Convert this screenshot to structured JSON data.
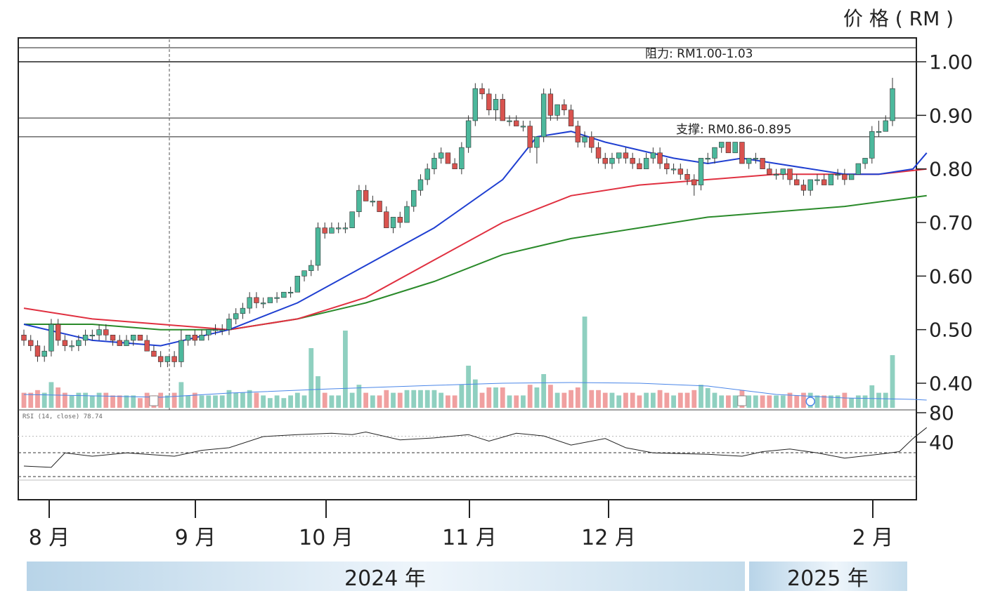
{
  "chart_data": {
    "type": "candlestick",
    "y_unit_label": "价 格 ( RM )",
    "ylim": [
      0.36,
      1.03
    ],
    "y_ticks": [
      {
        "value": 1.0,
        "label": "1.00"
      },
      {
        "value": 0.9,
        "label": "0.90"
      },
      {
        "value": 0.8,
        "label": "0.80"
      },
      {
        "value": 0.7,
        "label": "0.70"
      },
      {
        "value": 0.6,
        "label": "0.60"
      },
      {
        "value": 0.5,
        "label": "0.50"
      },
      {
        "value": 0.4,
        "label": "0.40"
      }
    ],
    "rsi_ticks": [
      {
        "value": 80,
        "label": "80"
      },
      {
        "value": 40,
        "label": "40"
      }
    ],
    "month_labels": [
      "8 月",
      "9 月",
      "10 月",
      "11 月",
      "12 月",
      "2 月"
    ],
    "year_labels": [
      "2024 年",
      "2025 年"
    ],
    "resistance": {
      "label": "阻力: RM1.00-1.03",
      "low": 1.0,
      "high": 1.03
    },
    "support": {
      "label": "支撑: RM0.86-0.895",
      "low": 0.86,
      "high": 0.895
    },
    "rsi_legend": "RSI (14, close) 78.74",
    "rsi_value": 78.74,
    "colors": {
      "up": "#4cb89c",
      "down": "#d9534f",
      "ma_short": "#1f3fd1",
      "ma_mid": "#e03040",
      "ma_long": "#2a8a2a",
      "vol_up": "#8fd0c0",
      "vol_down": "#f0a0a0",
      "vol_ma": "#4a86e8"
    },
    "anchor_dates": [
      "2024-08-01",
      "2024-09-02",
      "2024-10-01",
      "2024-11-01",
      "2024-12-02",
      "2025-02-03"
    ],
    "candles": [
      [
        0.49,
        0.5,
        0.47,
        0.48
      ],
      [
        0.48,
        0.49,
        0.46,
        0.47
      ],
      [
        0.47,
        0.48,
        0.44,
        0.45
      ],
      [
        0.45,
        0.47,
        0.44,
        0.46
      ],
      [
        0.46,
        0.52,
        0.45,
        0.51
      ],
      [
        0.51,
        0.52,
        0.47,
        0.48
      ],
      [
        0.48,
        0.49,
        0.46,
        0.47
      ],
      [
        0.47,
        0.48,
        0.46,
        0.47
      ],
      [
        0.47,
        0.49,
        0.46,
        0.48
      ],
      [
        0.48,
        0.5,
        0.47,
        0.49
      ],
      [
        0.49,
        0.5,
        0.48,
        0.49
      ],
      [
        0.49,
        0.51,
        0.48,
        0.5
      ],
      [
        0.5,
        0.51,
        0.48,
        0.49
      ],
      [
        0.49,
        0.49,
        0.47,
        0.48
      ],
      [
        0.48,
        0.49,
        0.47,
        0.47
      ],
      [
        0.47,
        0.49,
        0.47,
        0.48
      ],
      [
        0.48,
        0.49,
        0.47,
        0.49
      ],
      [
        0.49,
        0.49,
        0.48,
        0.48
      ],
      [
        0.48,
        0.49,
        0.46,
        0.46
      ],
      [
        0.46,
        0.47,
        0.45,
        0.45
      ],
      [
        0.45,
        0.46,
        0.43,
        0.44
      ],
      [
        0.44,
        0.45,
        0.43,
        0.45
      ],
      [
        0.45,
        0.46,
        0.43,
        0.44
      ],
      [
        0.44,
        0.5,
        0.43,
        0.48
      ],
      [
        0.48,
        0.49,
        0.47,
        0.49
      ],
      [
        0.49,
        0.5,
        0.47,
        0.48
      ],
      [
        0.48,
        0.5,
        0.48,
        0.49
      ],
      [
        0.49,
        0.5,
        0.48,
        0.5
      ],
      [
        0.5,
        0.51,
        0.49,
        0.5
      ],
      [
        0.5,
        0.51,
        0.49,
        0.5
      ],
      [
        0.5,
        0.53,
        0.49,
        0.52
      ],
      [
        0.52,
        0.54,
        0.51,
        0.53
      ],
      [
        0.53,
        0.55,
        0.52,
        0.54
      ],
      [
        0.54,
        0.57,
        0.53,
        0.56
      ],
      [
        0.56,
        0.57,
        0.54,
        0.55
      ],
      [
        0.55,
        0.56,
        0.54,
        0.55
      ],
      [
        0.55,
        0.56,
        0.55,
        0.56
      ],
      [
        0.56,
        0.57,
        0.55,
        0.56
      ],
      [
        0.56,
        0.57,
        0.56,
        0.57
      ],
      [
        0.57,
        0.58,
        0.56,
        0.57
      ],
      [
        0.57,
        0.6,
        0.57,
        0.6
      ],
      [
        0.6,
        0.61,
        0.59,
        0.61
      ],
      [
        0.61,
        0.63,
        0.6,
        0.62
      ],
      [
        0.62,
        0.7,
        0.61,
        0.69
      ],
      [
        0.69,
        0.7,
        0.67,
        0.68
      ],
      [
        0.68,
        0.7,
        0.68,
        0.69
      ],
      [
        0.69,
        0.7,
        0.68,
        0.69
      ],
      [
        0.69,
        0.7,
        0.68,
        0.69
      ],
      [
        0.69,
        0.72,
        0.69,
        0.72
      ],
      [
        0.72,
        0.77,
        0.71,
        0.76
      ],
      [
        0.76,
        0.77,
        0.74,
        0.74
      ],
      [
        0.74,
        0.75,
        0.73,
        0.74
      ],
      [
        0.74,
        0.74,
        0.72,
        0.72
      ],
      [
        0.72,
        0.73,
        0.69,
        0.69
      ],
      [
        0.69,
        0.71,
        0.68,
        0.71
      ],
      [
        0.71,
        0.72,
        0.69,
        0.7
      ],
      [
        0.7,
        0.74,
        0.7,
        0.73
      ],
      [
        0.73,
        0.76,
        0.72,
        0.76
      ],
      [
        0.76,
        0.79,
        0.75,
        0.78
      ],
      [
        0.78,
        0.81,
        0.77,
        0.8
      ],
      [
        0.8,
        0.83,
        0.79,
        0.82
      ],
      [
        0.82,
        0.84,
        0.81,
        0.83
      ],
      [
        0.83,
        0.83,
        0.81,
        0.81
      ],
      [
        0.81,
        0.82,
        0.8,
        0.8
      ],
      [
        0.8,
        0.85,
        0.79,
        0.84
      ],
      [
        0.84,
        0.9,
        0.83,
        0.89
      ],
      [
        0.89,
        0.96,
        0.88,
        0.95
      ],
      [
        0.95,
        0.96,
        0.93,
        0.94
      ],
      [
        0.94,
        0.95,
        0.9,
        0.91
      ],
      [
        0.91,
        0.94,
        0.89,
        0.93
      ],
      [
        0.93,
        0.94,
        0.89,
        0.89
      ],
      [
        0.89,
        0.9,
        0.88,
        0.89
      ],
      [
        0.89,
        0.9,
        0.88,
        0.88
      ],
      [
        0.88,
        0.89,
        0.87,
        0.88
      ],
      [
        0.88,
        0.89,
        0.83,
        0.84
      ],
      [
        0.84,
        0.86,
        0.81,
        0.86
      ],
      [
        0.86,
        0.95,
        0.85,
        0.94
      ],
      [
        0.94,
        0.95,
        0.89,
        0.9
      ],
      [
        0.9,
        0.92,
        0.89,
        0.92
      ],
      [
        0.92,
        0.93,
        0.9,
        0.91
      ],
      [
        0.91,
        0.92,
        0.88,
        0.88
      ],
      [
        0.88,
        0.89,
        0.84,
        0.85
      ],
      [
        0.85,
        0.87,
        0.84,
        0.86
      ],
      [
        0.86,
        0.87,
        0.83,
        0.84
      ],
      [
        0.84,
        0.85,
        0.81,
        0.82
      ],
      [
        0.82,
        0.83,
        0.8,
        0.81
      ],
      [
        0.81,
        0.83,
        0.8,
        0.82
      ],
      [
        0.82,
        0.83,
        0.81,
        0.83
      ],
      [
        0.83,
        0.84,
        0.81,
        0.82
      ],
      [
        0.82,
        0.83,
        0.8,
        0.81
      ],
      [
        0.81,
        0.82,
        0.8,
        0.8
      ],
      [
        0.8,
        0.83,
        0.8,
        0.82
      ],
      [
        0.82,
        0.84,
        0.81,
        0.83
      ],
      [
        0.83,
        0.84,
        0.8,
        0.81
      ],
      [
        0.81,
        0.82,
        0.79,
        0.8
      ],
      [
        0.8,
        0.81,
        0.79,
        0.8
      ],
      [
        0.8,
        0.81,
        0.78,
        0.79
      ],
      [
        0.79,
        0.8,
        0.77,
        0.78
      ],
      [
        0.78,
        0.79,
        0.75,
        0.77
      ],
      [
        0.77,
        0.82,
        0.76,
        0.82
      ],
      [
        0.82,
        0.83,
        0.81,
        0.82
      ],
      [
        0.82,
        0.84,
        0.81,
        0.84
      ],
      [
        0.84,
        0.85,
        0.83,
        0.85
      ],
      [
        0.85,
        0.85,
        0.83,
        0.83
      ],
      [
        0.83,
        0.85,
        0.83,
        0.85
      ],
      [
        0.85,
        0.85,
        0.81,
        0.81
      ],
      [
        0.81,
        0.82,
        0.8,
        0.82
      ],
      [
        0.82,
        0.83,
        0.81,
        0.82
      ],
      [
        0.82,
        0.82,
        0.8,
        0.8
      ],
      [
        0.8,
        0.81,
        0.79,
        0.79
      ],
      [
        0.79,
        0.8,
        0.78,
        0.79
      ],
      [
        0.79,
        0.8,
        0.78,
        0.8
      ],
      [
        0.8,
        0.8,
        0.77,
        0.78
      ],
      [
        0.78,
        0.79,
        0.77,
        0.77
      ],
      [
        0.77,
        0.78,
        0.75,
        0.76
      ],
      [
        0.76,
        0.78,
        0.75,
        0.78
      ],
      [
        0.78,
        0.79,
        0.77,
        0.78
      ],
      [
        0.78,
        0.79,
        0.77,
        0.77
      ],
      [
        0.77,
        0.79,
        0.77,
        0.79
      ],
      [
        0.79,
        0.8,
        0.78,
        0.79
      ],
      [
        0.79,
        0.8,
        0.77,
        0.78
      ],
      [
        0.78,
        0.79,
        0.78,
        0.79
      ],
      [
        0.79,
        0.81,
        0.79,
        0.81
      ],
      [
        0.81,
        0.82,
        0.8,
        0.82
      ],
      [
        0.82,
        0.88,
        0.81,
        0.87
      ],
      [
        0.87,
        0.89,
        0.86,
        0.87
      ],
      [
        0.87,
        0.9,
        0.87,
        0.89
      ],
      [
        0.89,
        0.97,
        0.88,
        0.95
      ]
    ],
    "ma_short": [
      [
        0,
        0.51
      ],
      [
        10,
        0.48
      ],
      [
        20,
        0.47
      ],
      [
        30,
        0.5
      ],
      [
        40,
        0.55
      ],
      [
        50,
        0.62
      ],
      [
        60,
        0.69
      ],
      [
        70,
        0.78
      ],
      [
        75,
        0.86
      ],
      [
        80,
        0.87
      ],
      [
        85,
        0.85
      ],
      [
        95,
        0.82
      ],
      [
        100,
        0.81
      ],
      [
        105,
        0.82
      ],
      [
        110,
        0.81
      ],
      [
        120,
        0.79
      ],
      [
        125,
        0.79
      ],
      [
        130,
        0.8
      ],
      [
        132,
        0.83
      ]
    ],
    "ma_mid": [
      [
        0,
        0.54
      ],
      [
        10,
        0.52
      ],
      [
        20,
        0.51
      ],
      [
        30,
        0.5
      ],
      [
        40,
        0.52
      ],
      [
        50,
        0.56
      ],
      [
        60,
        0.63
      ],
      [
        70,
        0.7
      ],
      [
        80,
        0.75
      ],
      [
        90,
        0.77
      ],
      [
        100,
        0.78
      ],
      [
        110,
        0.79
      ],
      [
        120,
        0.79
      ],
      [
        125,
        0.79
      ],
      [
        132,
        0.8
      ]
    ],
    "ma_long": [
      [
        0,
        0.51
      ],
      [
        10,
        0.51
      ],
      [
        20,
        0.5
      ],
      [
        30,
        0.5
      ],
      [
        40,
        0.52
      ],
      [
        50,
        0.55
      ],
      [
        60,
        0.59
      ],
      [
        70,
        0.64
      ],
      [
        80,
        0.67
      ],
      [
        90,
        0.69
      ],
      [
        100,
        0.71
      ],
      [
        110,
        0.72
      ],
      [
        120,
        0.73
      ],
      [
        132,
        0.75
      ]
    ],
    "rsi": [
      [
        0,
        20
      ],
      [
        4,
        18
      ],
      [
        6,
        40
      ],
      [
        10,
        35
      ],
      [
        15,
        40
      ],
      [
        22,
        35
      ],
      [
        26,
        44
      ],
      [
        30,
        48
      ],
      [
        35,
        65
      ],
      [
        40,
        68
      ],
      [
        45,
        70
      ],
      [
        48,
        68
      ],
      [
        50,
        72
      ],
      [
        55,
        60
      ],
      [
        60,
        63
      ],
      [
        65,
        68
      ],
      [
        68,
        58
      ],
      [
        72,
        70
      ],
      [
        76,
        66
      ],
      [
        80,
        52
      ],
      [
        85,
        62
      ],
      [
        88,
        48
      ],
      [
        92,
        40
      ],
      [
        100,
        38
      ],
      [
        105,
        35
      ],
      [
        108,
        42
      ],
      [
        112,
        46
      ],
      [
        116,
        40
      ],
      [
        120,
        32
      ],
      [
        125,
        38
      ],
      [
        128,
        42
      ],
      [
        130,
        62
      ],
      [
        132,
        78.74
      ]
    ],
    "volumes": [
      [
        0,
        "d"
      ],
      [
        1,
        "d"
      ],
      [
        2,
        "d"
      ],
      [
        3,
        "u"
      ],
      [
        5,
        "d"
      ],
      [
        8,
        "u"
      ],
      [
        12,
        "d"
      ],
      [
        16,
        "d"
      ],
      [
        20,
        "d"
      ],
      [
        23,
        "u"
      ],
      [
        28,
        "u"
      ],
      [
        30,
        "u"
      ],
      [
        34,
        "u"
      ],
      [
        38,
        "u"
      ],
      [
        40,
        "u"
      ],
      [
        42,
        "u"
      ],
      [
        43,
        "u"
      ],
      [
        45,
        "u"
      ],
      [
        48,
        "u"
      ],
      [
        50,
        "u"
      ],
      [
        55,
        "u"
      ],
      [
        60,
        "u"
      ],
      [
        63,
        "d"
      ],
      [
        65,
        "u"
      ],
      [
        66,
        "u"
      ],
      [
        68,
        "d"
      ],
      [
        72,
        "u"
      ],
      [
        75,
        "d"
      ],
      [
        80,
        "d"
      ],
      [
        85,
        "d"
      ],
      [
        90,
        "d"
      ],
      [
        95,
        "u"
      ],
      [
        100,
        "u"
      ],
      [
        105,
        "d"
      ],
      [
        110,
        "u"
      ],
      [
        115,
        "d"
      ],
      [
        120,
        "u"
      ],
      [
        125,
        "u"
      ],
      [
        130,
        "u"
      ],
      [
        132,
        "u"
      ]
    ],
    "volume_values": [
      0.05,
      0.04,
      0.05,
      0.06,
      0.03,
      0.04,
      0.03,
      0.03,
      0.06,
      0.18,
      0.05,
      0.04,
      0.14,
      0.05,
      0.33,
      0.14,
      0.05,
      0.12,
      0.17,
      0.14,
      0.14,
      0.07,
      0.05,
      0.12,
      0.13,
      0.09,
      0.07,
      0.07,
      0.06,
      0.04,
      0.06,
      0.08,
      0.05,
      0.04,
      0.03,
      0.03,
      0.02,
      0.04,
      0.07,
      0.18
    ]
  }
}
